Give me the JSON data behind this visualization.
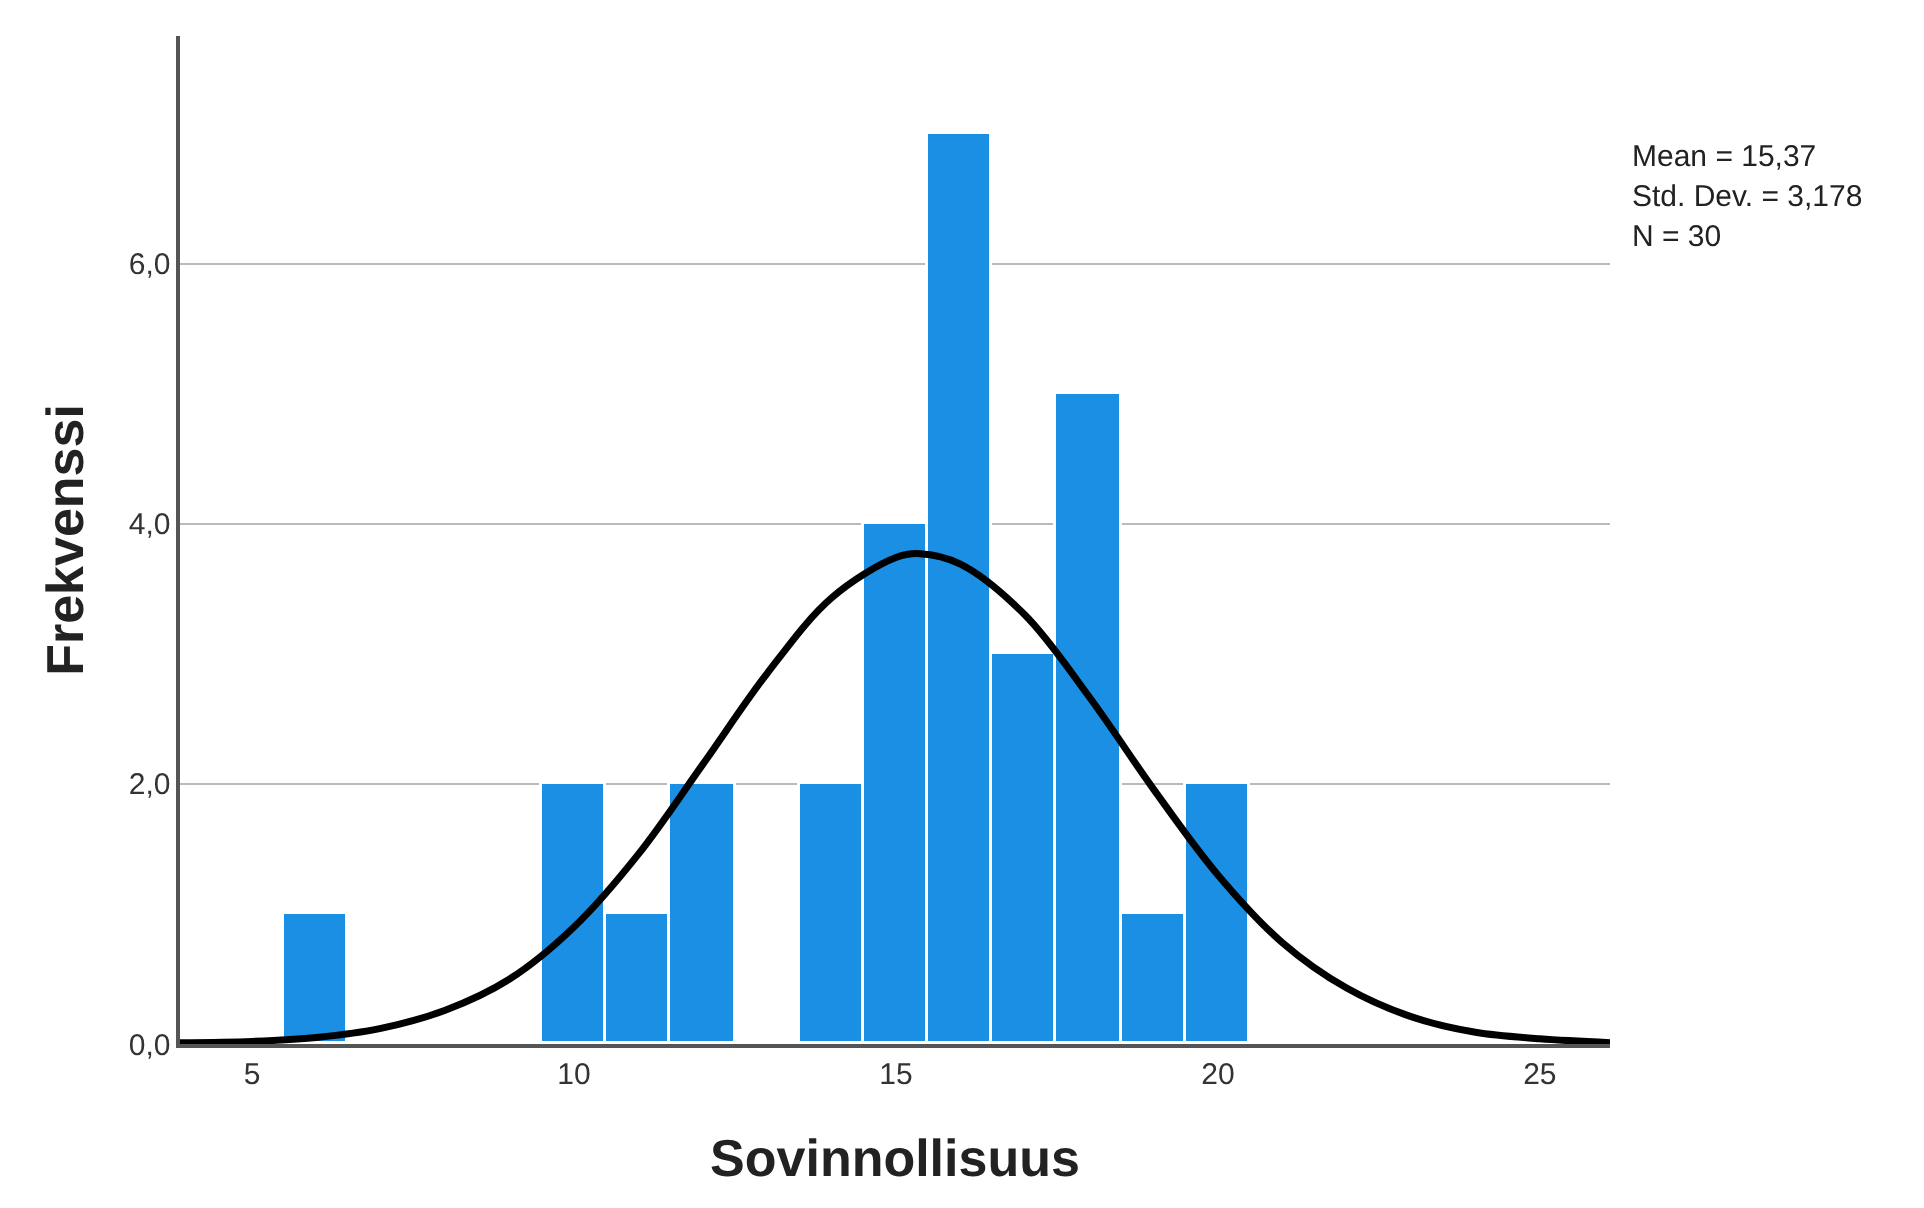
{
  "chart_data": {
    "type": "histogram",
    "xlabel": "Sovinnollisuus",
    "ylabel": "Frekvenssi",
    "xlim": [
      3.88,
      26.09
    ],
    "xticks": [
      5,
      10,
      15,
      20,
      25
    ],
    "ylim": [
      0,
      7.75
    ],
    "yticks": [
      {
        "value": 0,
        "label": "0,0"
      },
      {
        "value": 2,
        "label": "2,0"
      },
      {
        "value": 4,
        "label": "4,0"
      },
      {
        "value": 6,
        "label": "6,0"
      }
    ],
    "grid": "y",
    "annotations": [
      "Mean = 15,37",
      "Std. Dev. = 3,178",
      "N = 30"
    ],
    "series": [
      {
        "type": "histogram",
        "color": "#1a8fe3",
        "bins": [
          5.5,
          6.5,
          7.5,
          8.5,
          9.5,
          10.5,
          11.5,
          12.5,
          13.5,
          14.5,
          15.5,
          16.5,
          17.5,
          18.5,
          19.5,
          20.5
        ],
        "values": [
          1,
          0,
          0,
          0,
          2,
          1,
          2,
          0,
          2,
          4,
          7,
          3,
          5,
          1,
          2
        ]
      },
      {
        "type": "line",
        "color": "#000000",
        "x": [
          3.88,
          5,
          6,
          7,
          8,
          9,
          10,
          11,
          12,
          13,
          14,
          15,
          15.37,
          16,
          17,
          18,
          19,
          20,
          21,
          22,
          23,
          24,
          25,
          26.09
        ],
        "values": [
          0.01,
          0.02,
          0.05,
          0.12,
          0.26,
          0.5,
          0.9,
          1.46,
          2.15,
          2.85,
          3.43,
          3.74,
          3.77,
          3.69,
          3.3,
          2.67,
          1.96,
          1.3,
          0.78,
          0.43,
          0.21,
          0.09,
          0.04,
          0.01
        ]
      }
    ]
  }
}
